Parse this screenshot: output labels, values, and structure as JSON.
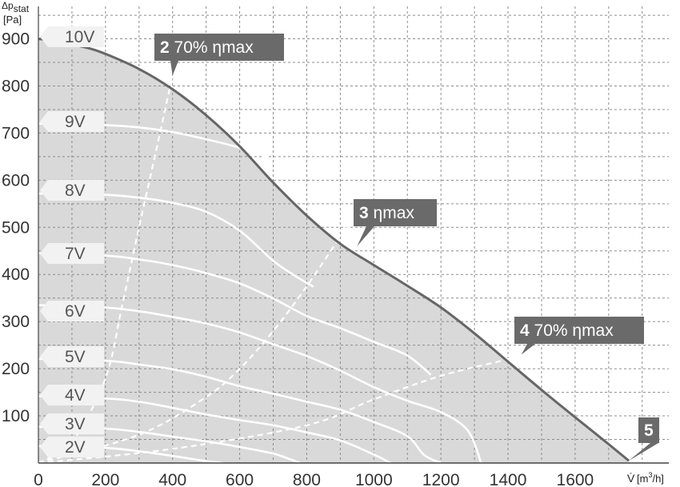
{
  "chart_data": {
    "type": "line",
    "title": "",
    "ylabel_main": "Δp",
    "ylabel_sub": "stat",
    "ylabel_unit": "[Pa]",
    "xlabel_symbol": "V̇",
    "xlabel_unit_pre": "[m",
    "xlabel_unit_sup": "3",
    "xlabel_unit_post": "/h]",
    "x_ticks": [
      "0",
      "200",
      "400",
      "600",
      "800",
      "1000",
      "1200",
      "1400",
      "1600"
    ],
    "y_ticks": [
      "100",
      "200",
      "300",
      "400",
      "500",
      "600",
      "700",
      "800",
      "900"
    ],
    "xlim": [
      0,
      1800
    ],
    "ylim": [
      0,
      950
    ],
    "grid": true,
    "colors": {
      "area": "#d9d9d9",
      "max_curve": "#666666",
      "voltage_curves": "#ffffff",
      "tag_fill": "#f2f2f2",
      "callout_fill": "#6a6a6a"
    },
    "max_curve": {
      "name": "10V",
      "x": [
        0,
        50,
        100,
        150,
        200,
        300,
        400,
        500,
        600,
        700,
        800,
        900,
        1000,
        1100,
        1200,
        1300,
        1400,
        1500,
        1600,
        1700,
        1760
      ],
      "y": [
        900,
        895,
        888,
        880,
        868,
        836,
        793,
        738,
        672,
        595,
        525,
        465,
        420,
        376,
        330,
        275,
        215,
        155,
        97,
        40,
        5
      ]
    },
    "voltage_curves": [
      {
        "name": "9V",
        "x": [
          0,
          200,
          300,
          400,
          500,
          600,
          680
        ],
        "y": [
          720,
          717,
          712,
          702,
          687,
          669,
          650
        ]
      },
      {
        "name": "8V",
        "x": [
          0,
          200,
          300,
          400,
          500,
          600,
          700,
          770,
          820
        ],
        "y": [
          572,
          569,
          563,
          552,
          533,
          493,
          429,
          395,
          374
        ]
      },
      {
        "name": "7V",
        "x": [
          0,
          200,
          300,
          400,
          500,
          600,
          700,
          800,
          900,
          1000,
          1100,
          1170
        ],
        "y": [
          445,
          440,
          432,
          420,
          403,
          381,
          349,
          312,
          286,
          257,
          228,
          187
        ]
      },
      {
        "name": "6V",
        "x": [
          0,
          200,
          300,
          400,
          500,
          600,
          700,
          800,
          900,
          1000,
          1100,
          1200,
          1280,
          1320
        ],
        "y": [
          335,
          330,
          322,
          310,
          296,
          277,
          252,
          227,
          196,
          161,
          132,
          108,
          69,
          0
        ]
      },
      {
        "name": "5V",
        "x": [
          0,
          200,
          300,
          400,
          500,
          600,
          700,
          800,
          900,
          1000,
          1100,
          1150,
          1200
        ],
        "y": [
          221,
          217,
          209,
          199,
          183,
          163,
          147,
          130,
          113,
          87,
          57,
          17,
          0
        ]
      },
      {
        "name": "4V",
        "x": [
          0,
          200,
          300,
          400,
          500,
          600,
          700,
          800,
          900,
          1000,
          1050
        ],
        "y": [
          142,
          137,
          130,
          117,
          103,
          91,
          80,
          65,
          48,
          18,
          0
        ]
      },
      {
        "name": "3V",
        "x": [
          0,
          200,
          300,
          400,
          500,
          600,
          700,
          750,
          780
        ],
        "y": [
          77,
          73,
          66,
          56,
          46,
          34,
          20,
          8,
          0
        ]
      },
      {
        "name": "2V",
        "x": [
          0,
          200,
          300,
          400,
          500,
          550
        ],
        "y": [
          36,
          32,
          25,
          15,
          4,
          0
        ]
      }
    ],
    "operating_lines": [
      {
        "name": "2 70% ηmax",
        "x": [
          0,
          100,
          200,
          250,
          300,
          350,
          400
        ],
        "y": [
          0,
          45,
          180,
          335,
          500,
          660,
          822
        ]
      },
      {
        "name": "3 ηmax",
        "x": [
          0,
          300,
          500,
          600,
          700,
          800,
          900,
          960
        ],
        "y": [
          0,
          60,
          140,
          200,
          280,
          375,
          480,
          540
        ]
      },
      {
        "name": "4 70% ηmax",
        "x": [
          0,
          400,
          800,
          1000,
          1200,
          1400,
          1450
        ],
        "y": [
          0,
          30,
          80,
          135,
          185,
          220,
          230
        ]
      }
    ],
    "voltage_tags": [
      "10V",
      "9V",
      "8V",
      "7V",
      "6V",
      "5V",
      "4V",
      "3V",
      "2V"
    ],
    "callouts": [
      {
        "num": "2",
        "text": " 70% ηmax",
        "at_x": 400,
        "at_y": 822
      },
      {
        "num": "3",
        "text": " ηmax",
        "at_x": 950,
        "at_y": 460
      },
      {
        "num": "4",
        "text": " 70% ηmax",
        "at_x": 1440,
        "at_y": 230
      },
      {
        "num": "5",
        "text": "",
        "at_x": 1760,
        "at_y": 5
      }
    ]
  }
}
